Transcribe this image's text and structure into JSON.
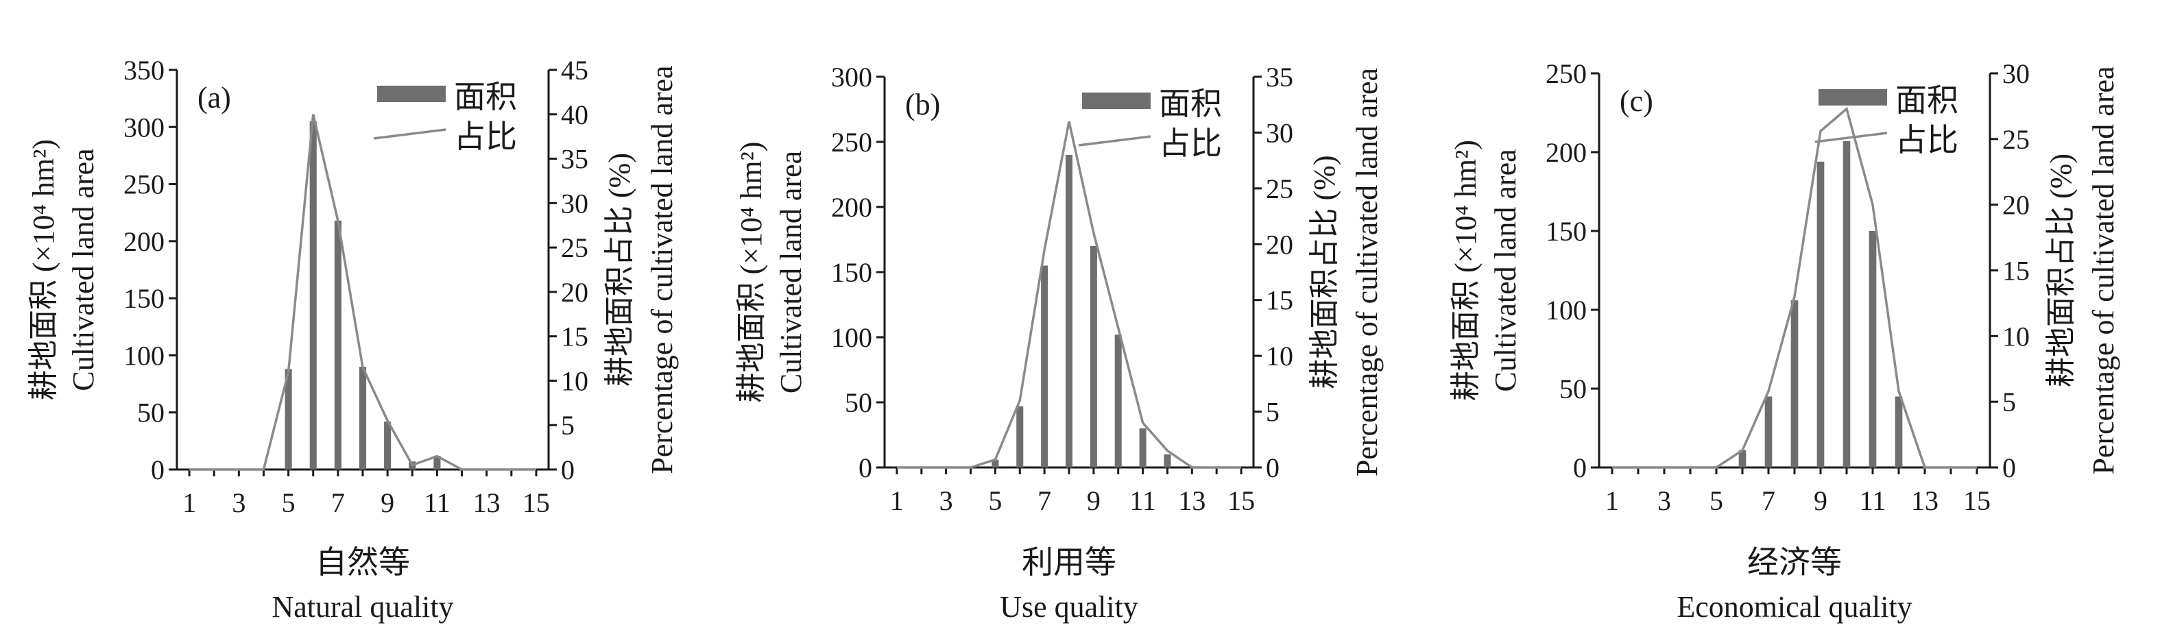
{
  "chart_data": [
    {
      "type": "bar",
      "panel_label": "(a)",
      "x": [
        1,
        2,
        3,
        4,
        5,
        6,
        7,
        8,
        9,
        10,
        11,
        12,
        13,
        14,
        15
      ],
      "xticks": [
        1,
        3,
        5,
        7,
        9,
        11,
        13,
        15
      ],
      "xlabel_cn": "自然等",
      "xlabel_en": "Natural quality",
      "ylabel_left_cn": "耕地面积 (×10⁴ hm²)",
      "ylabel_left_en": "Cultivated land area",
      "ylabel_right_cn": "耕地面积占比 (%)",
      "ylabel_right_en": "Percentage of cultivated land area",
      "ylim_left": [
        0,
        350
      ],
      "ylim_right": [
        0,
        45
      ],
      "yticks_left": [
        0,
        50,
        100,
        150,
        200,
        250,
        300,
        350
      ],
      "yticks_right": [
        0,
        5,
        10,
        15,
        20,
        25,
        30,
        35,
        40,
        45
      ],
      "legend": [
        "面积",
        "占比"
      ],
      "legend_position": "top-right",
      "series": [
        {
          "name": "面积",
          "axis": "left",
          "kind": "bar",
          "values": [
            0,
            0,
            0,
            0,
            88,
            305,
            218,
            90,
            42,
            7,
            12,
            0,
            0,
            0,
            0
          ]
        },
        {
          "name": "占比",
          "axis": "right",
          "kind": "line",
          "values": [
            0,
            0,
            0,
            0,
            11,
            40,
            28,
            11.5,
            5.5,
            0.5,
            1.5,
            0,
            0,
            0,
            0
          ]
        }
      ]
    },
    {
      "type": "bar",
      "panel_label": "(b)",
      "x": [
        1,
        2,
        3,
        4,
        5,
        6,
        7,
        8,
        9,
        10,
        11,
        12,
        13,
        14,
        15
      ],
      "xticks": [
        1,
        3,
        5,
        7,
        9,
        11,
        13,
        15
      ],
      "xlabel_cn": "利用等",
      "xlabel_en": "Use quality",
      "ylabel_left_cn": "耕地面积 (×10⁴ hm²)",
      "ylabel_left_en": "Cultivated land area",
      "ylabel_right_cn": "耕地面积占比 (%)",
      "ylabel_right_en": "Percentage of cultivated land area",
      "ylim_left": [
        0,
        300
      ],
      "ylim_right": [
        0,
        35
      ],
      "yticks_left": [
        0,
        50,
        100,
        150,
        200,
        250,
        300
      ],
      "yticks_right": [
        0,
        5,
        10,
        15,
        20,
        25,
        30,
        35
      ],
      "legend": [
        "面积",
        "占比"
      ],
      "legend_position": "top-right",
      "series": [
        {
          "name": "面积",
          "axis": "left",
          "kind": "bar",
          "values": [
            0,
            0,
            0,
            0,
            6,
            47,
            155,
            240,
            170,
            102,
            30,
            10,
            0,
            0,
            0
          ]
        },
        {
          "name": "占比",
          "axis": "right",
          "kind": "line",
          "values": [
            0,
            0,
            0,
            0,
            0.7,
            6,
            19.5,
            31,
            21,
            12.5,
            4,
            1.5,
            0,
            0,
            0
          ]
        }
      ]
    },
    {
      "type": "bar",
      "panel_label": "(c)",
      "x": [
        1,
        2,
        3,
        4,
        5,
        6,
        7,
        8,
        9,
        10,
        11,
        12,
        13,
        14,
        15
      ],
      "xticks": [
        1,
        3,
        5,
        7,
        9,
        11,
        13,
        15
      ],
      "xlabel_cn": "经济等",
      "xlabel_en": "Economical quality",
      "ylabel_left_cn": "耕地面积 (×10⁴ hm²)",
      "ylabel_left_en": "Cultivated land area",
      "ylabel_right_cn": "耕地面积占比 (%)",
      "ylabel_right_en": "Percentage of cultivated land area",
      "ylim_left": [
        0,
        250
      ],
      "ylim_right": [
        0,
        30
      ],
      "yticks_left": [
        0,
        50,
        100,
        150,
        200,
        250
      ],
      "yticks_right": [
        0,
        5,
        10,
        15,
        20,
        25,
        30
      ],
      "legend": [
        "面积",
        "占比"
      ],
      "legend_position": "top-right",
      "series": [
        {
          "name": "面积",
          "axis": "left",
          "kind": "bar",
          "values": [
            0,
            0,
            0,
            0,
            0,
            11,
            45,
            106,
            194,
            207,
            150,
            45,
            0,
            0,
            0
          ]
        },
        {
          "name": "占比",
          "axis": "right",
          "kind": "line",
          "values": [
            0,
            0,
            0,
            0,
            0,
            1.3,
            5.8,
            13,
            25.6,
            27.3,
            20,
            5.8,
            0,
            0,
            0
          ]
        }
      ]
    }
  ]
}
